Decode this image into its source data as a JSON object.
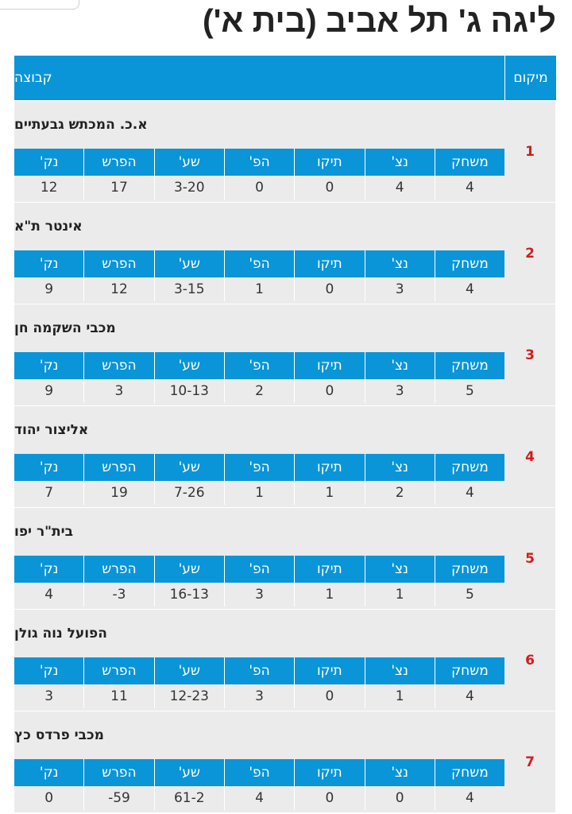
{
  "title": "ליגה ג' תל אביב (בית א')",
  "header": {
    "position_label": "מיקום",
    "team_label": "קבוצה"
  },
  "stat_labels": [
    "משחק",
    "נצ'",
    "תיקו",
    "הפ'",
    "שע'",
    "הפרש",
    "נק'"
  ],
  "rows": [
    {
      "position": "1",
      "team": "א.כ. המכתש גבעתיים",
      "stats": [
        "4",
        "4",
        "0",
        "0",
        "3-20",
        "17",
        "12"
      ]
    },
    {
      "position": "2",
      "team": "אינטר ת\"א",
      "stats": [
        "4",
        "3",
        "0",
        "1",
        "3-15",
        "12",
        "9"
      ]
    },
    {
      "position": "3",
      "team": "מכבי השקמה חן",
      "stats": [
        "5",
        "3",
        "0",
        "2",
        "10-13",
        "3",
        "9"
      ]
    },
    {
      "position": "4",
      "team": "אליצור יהוד",
      "stats": [
        "4",
        "2",
        "1",
        "1",
        "7-26",
        "19",
        "7"
      ]
    },
    {
      "position": "5",
      "team": "בית\"ר יפו",
      "stats": [
        "5",
        "1",
        "1",
        "3",
        "16-13",
        "3-",
        "4"
      ]
    },
    {
      "position": "6",
      "team": "הפועל נוה גולן",
      "stats": [
        "4",
        "1",
        "0",
        "3",
        "12-23",
        "11",
        "3"
      ]
    },
    {
      "position": "7",
      "team": "מכבי פרדס כץ",
      "stats": [
        "4",
        "0",
        "0",
        "4",
        "61-2",
        "59-",
        "0"
      ]
    }
  ],
  "colors": {
    "header_blue": "#0a95d8",
    "row_bg": "#ebebeb",
    "position_red": "#d31b1b"
  }
}
